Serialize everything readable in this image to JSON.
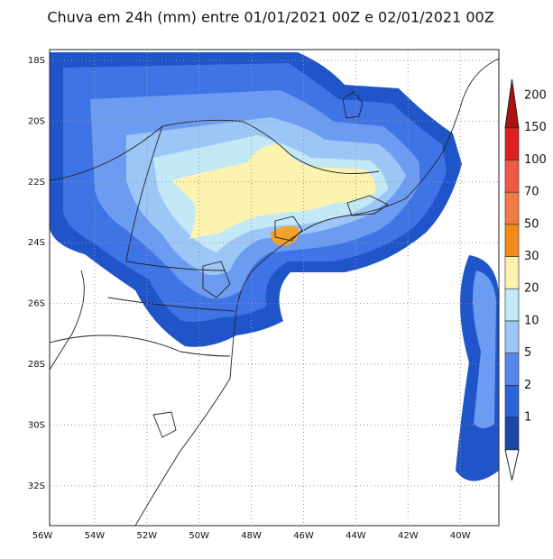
{
  "title": "Chuva em 24h (mm) entre 01/01/2021 00Z e 02/01/2021 00Z",
  "lat_labels": [
    "18S",
    "20S",
    "22S",
    "24S",
    "26S",
    "28S",
    "30S",
    "32S"
  ],
  "lon_labels": [
    "56W",
    "54W",
    "52W",
    "50W",
    "48W",
    "46W",
    "44W",
    "42W",
    "40W"
  ],
  "colorbar_labels": [
    "1",
    "2",
    "5",
    "10",
    "20",
    "30",
    "50",
    "70",
    "100",
    "150",
    "200"
  ]
}
